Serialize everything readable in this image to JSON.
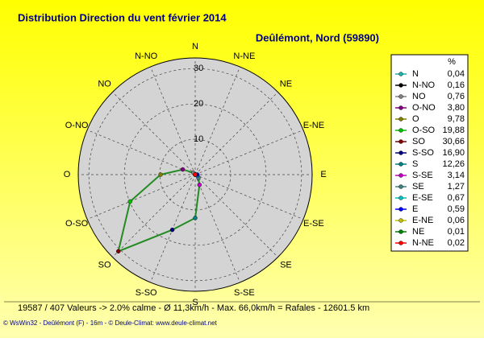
{
  "chart_data": {
    "type": "windrose",
    "title": "Distribution Direction du vent   février 2014",
    "subtitle": "Deûlémont, Nord (59890)",
    "legend_header": "%",
    "categories": [
      "N",
      "N-NO",
      "NO",
      "O-NO",
      "O",
      "O-SO",
      "SO",
      "S-SO",
      "S",
      "S-SE",
      "SE",
      "E-SE",
      "E",
      "E-NE",
      "NE",
      "N-NE"
    ],
    "values": [
      0.04,
      0.16,
      0.76,
      3.8,
      9.78,
      19.88,
      30.66,
      16.9,
      12.26,
      3.14,
      1.27,
      0.67,
      0.59,
      0.06,
      0.01,
      0.02
    ],
    "value_labels": [
      "0,04",
      "0,16",
      "0,76",
      "3,80",
      "9,78",
      "19,88",
      "30,66",
      "16,90",
      "12,26",
      "3,14",
      "1,27",
      "0,67",
      "0,59",
      "0,06",
      "0,01",
      "0,02"
    ],
    "colors": [
      "#20b2aa",
      "#000000",
      "#808080",
      "#800080",
      "#808000",
      "#00c000",
      "#800000",
      "#000080",
      "#008080",
      "#c000c0",
      "#408080",
      "#00c0c0",
      "#0000ff",
      "#c0c000",
      "#008000",
      "#ff0000"
    ],
    "line_color": "#228b22",
    "rlim": [
      0,
      33
    ],
    "rticks": [
      10,
      20,
      30
    ],
    "grid": true,
    "footer": "19587 / 407 Valeurs  -> 2.0% calme   -   Ø 11,3km/h  -  Max. 66,0km/h = Rafales   -   12601.5 km",
    "credit": "© WsWin32  -  Deûlémont (F) - 16m  -  © Deule-Climat: www.deule-climat.net"
  }
}
